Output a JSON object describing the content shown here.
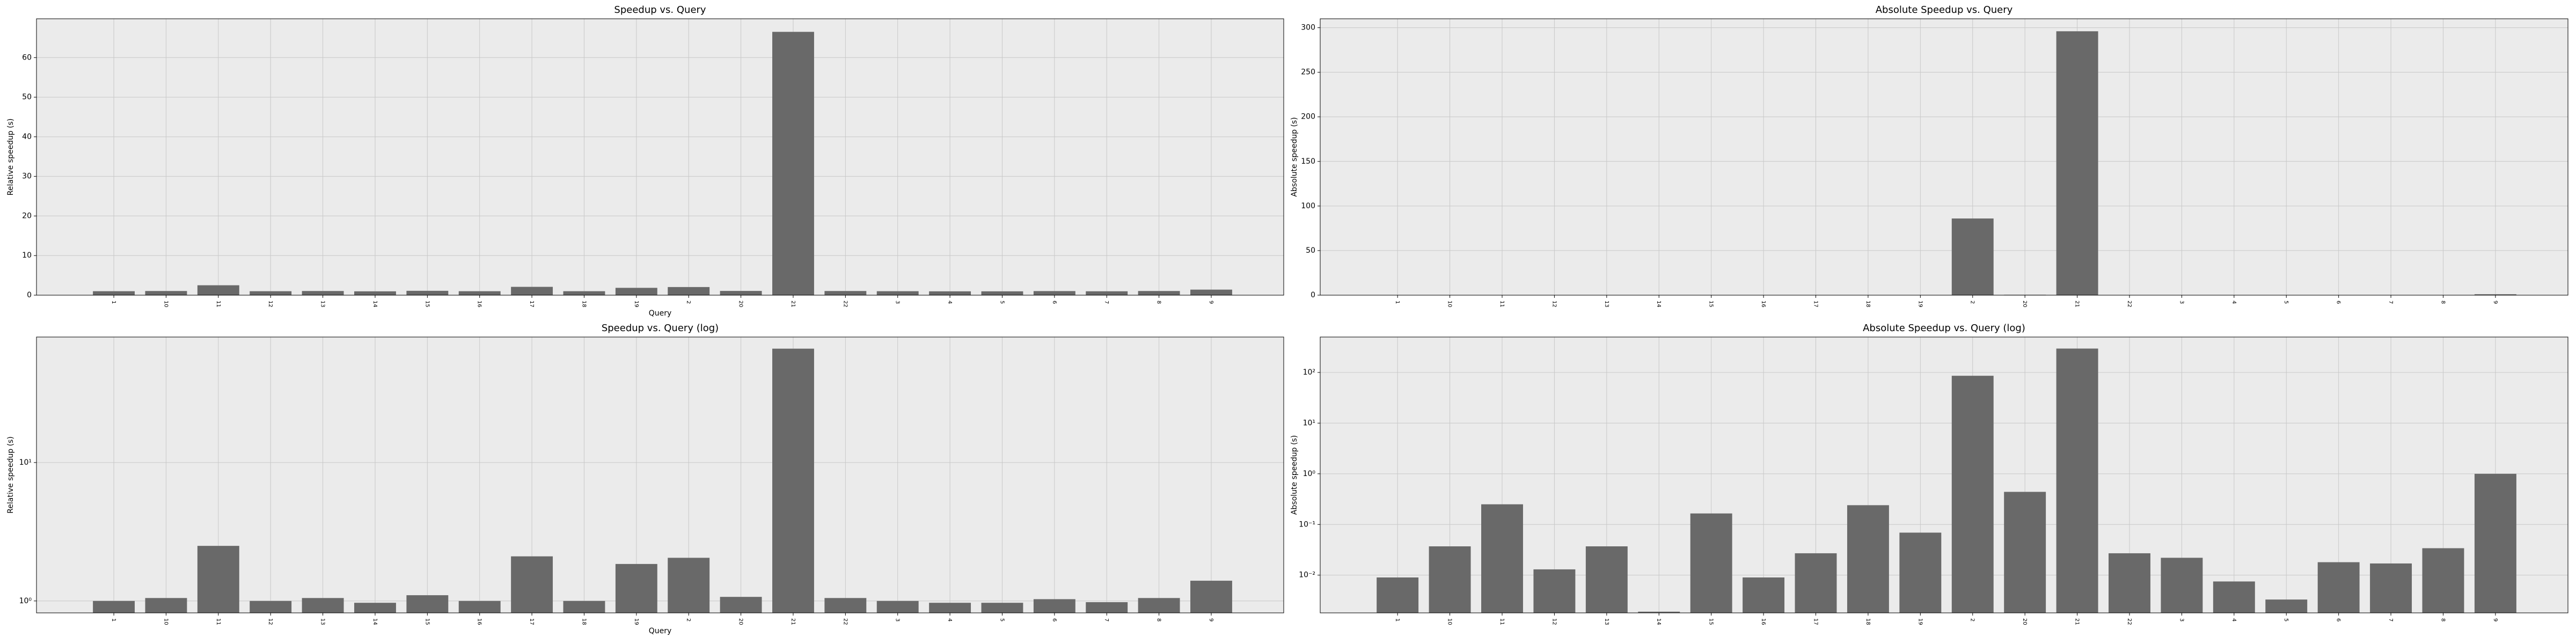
{
  "chart_data": [
    {
      "type": "bar",
      "title": "Speedup vs. Query",
      "x_label": "Query",
      "y_label": "Relative speedup (s)",
      "categories": [
        "1",
        "10",
        "11",
        "12",
        "13",
        "14",
        "15",
        "16",
        "17",
        "18",
        "19",
        "2",
        "20",
        "21",
        "22",
        "3",
        "4",
        "5",
        "6",
        "7",
        "8",
        "9"
      ],
      "values": [
        1.0,
        1.05,
        2.5,
        1.0,
        1.05,
        0.97,
        1.1,
        1.0,
        2.1,
        1.0,
        1.85,
        2.05,
        1.07,
        66.5,
        1.05,
        1.0,
        0.97,
        0.97,
        1.03,
        0.98,
        1.05,
        1.4
      ],
      "color": "#696969",
      "ylim": [
        0,
        69.8
      ],
      "yticks": [
        0,
        10,
        20,
        30,
        40,
        50,
        60
      ],
      "log": false,
      "grid": true
    },
    {
      "type": "bar",
      "title": "Absolute Speedup vs. Query",
      "y_label": "Absolute speedup (s)",
      "categories": [
        "1",
        "10",
        "11",
        "12",
        "13",
        "14",
        "15",
        "16",
        "17",
        "18",
        "19",
        "2",
        "20",
        "21",
        "22",
        "3",
        "4",
        "5",
        "6",
        "7",
        "8",
        "9"
      ],
      "values": [
        0.009,
        0.037,
        0.25,
        0.013,
        0.037,
        0.0019,
        0.165,
        0.009,
        0.027,
        0.24,
        0.069,
        86,
        0.44,
        296,
        0.027,
        0.022,
        0.0075,
        0.0033,
        0.018,
        0.017,
        0.034,
        1.0
      ],
      "color": "#696969",
      "ylim": [
        0,
        310
      ],
      "yticks": [
        0,
        50,
        100,
        150,
        200,
        250,
        300
      ],
      "log": false,
      "grid": true
    },
    {
      "type": "bar",
      "title": "Speedup vs. Query (log)",
      "x_label": "Query",
      "y_label": "Relative speedup (s)",
      "categories": [
        "1",
        "10",
        "11",
        "12",
        "13",
        "14",
        "15",
        "16",
        "17",
        "18",
        "19",
        "2",
        "20",
        "21",
        "22",
        "3",
        "4",
        "5",
        "6",
        "7",
        "8",
        "9"
      ],
      "values": [
        1.0,
        1.05,
        2.5,
        1.0,
        1.05,
        0.97,
        1.1,
        1.0,
        2.1,
        1.0,
        1.85,
        2.05,
        1.07,
        66.5,
        1.05,
        1.0,
        0.97,
        0.97,
        1.03,
        0.98,
        1.05,
        1.4
      ],
      "color": "#696969",
      "ylim": [
        0.82,
        80.7
      ],
      "yticks": [
        {
          "value": 1,
          "label": "10⁰"
        },
        {
          "value": 10,
          "label": "10¹"
        }
      ],
      "log": true,
      "grid": true
    },
    {
      "type": "bar",
      "title": "Absolute Speedup vs. Query (log)",
      "y_label": "Absolute speedup (s)",
      "categories": [
        "1",
        "10",
        "11",
        "12",
        "13",
        "14",
        "15",
        "16",
        "17",
        "18",
        "19",
        "2",
        "20",
        "21",
        "22",
        "3",
        "4",
        "5",
        "6",
        "7",
        "8",
        "9"
      ],
      "values": [
        0.009,
        0.037,
        0.25,
        0.013,
        0.037,
        0.0019,
        0.165,
        0.009,
        0.027,
        0.24,
        0.069,
        86,
        0.44,
        296,
        0.027,
        0.022,
        0.0075,
        0.0033,
        0.018,
        0.017,
        0.034,
        1.0
      ],
      "color": "#696969",
      "ylim": [
        0.0018,
        500
      ],
      "yticks": [
        {
          "value": 0.01,
          "label": "10⁻²"
        },
        {
          "value": 0.1,
          "label": "10⁻¹"
        },
        {
          "value": 1,
          "label": "10⁰"
        },
        {
          "value": 10,
          "label": "10¹"
        },
        {
          "value": 100,
          "label": "10²"
        }
      ],
      "log": true,
      "grid": true
    }
  ]
}
